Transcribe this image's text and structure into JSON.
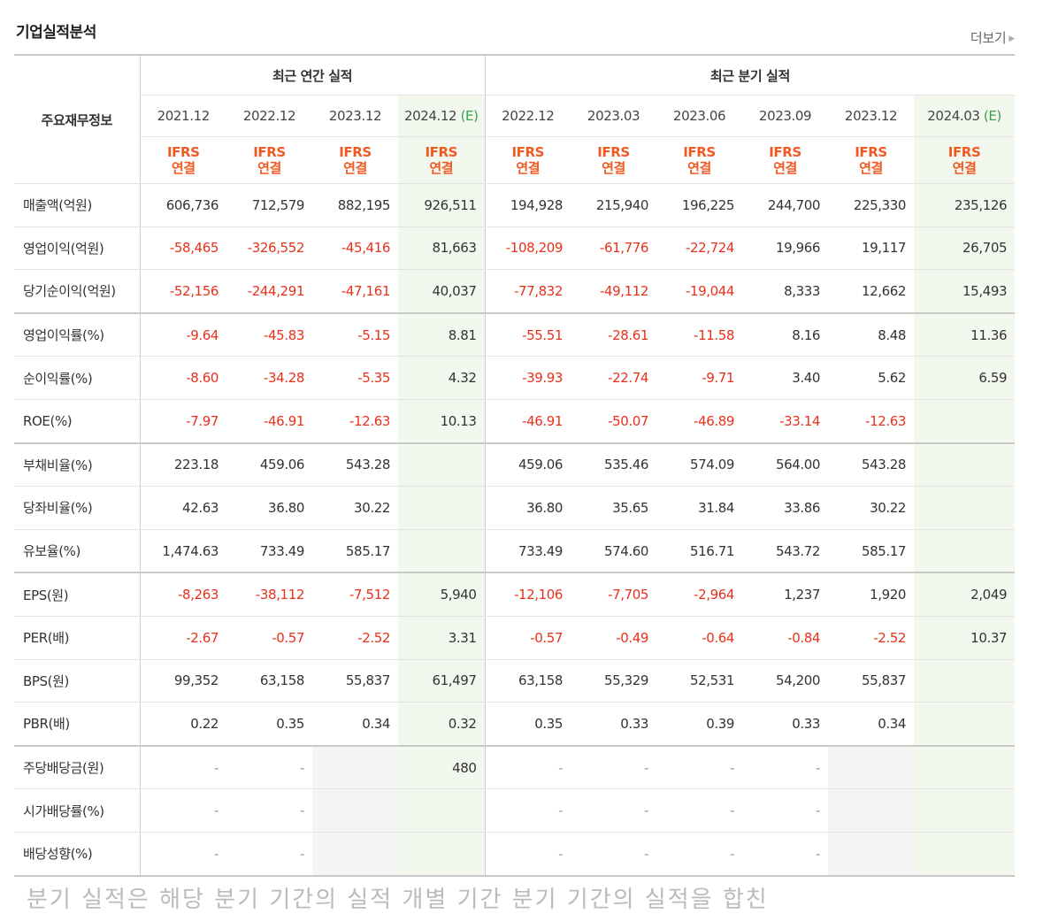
{
  "header": {
    "title": "기업실적분석",
    "more_label": "더보기",
    "more_arrow": "▶"
  },
  "table": {
    "row_header": "주요재무정보",
    "annual_group": "최근 연간 실적",
    "quarterly_group": "최근 분기 실적",
    "est_suffix": "(E)",
    "ifrs_line1": "IFRS",
    "ifrs_line2": "연결",
    "annual_periods": [
      "2021.12",
      "2022.12",
      "2023.12",
      "2024.12"
    ],
    "quarterly_periods": [
      "2022.12",
      "2023.03",
      "2023.06",
      "2023.09",
      "2023.12",
      "2024.03"
    ],
    "rows": [
      {
        "label": "매출액(억원)",
        "values": [
          "606,736",
          "712,579",
          "882,195",
          "926,511",
          "194,928",
          "215,940",
          "196,225",
          "244,700",
          "225,330",
          "235,126"
        ]
      },
      {
        "label": "영업이익(억원)",
        "values": [
          "-58,465",
          "-326,552",
          "-45,416",
          "81,663",
          "-108,209",
          "-61,776",
          "-22,724",
          "19,966",
          "19,117",
          "26,705"
        ]
      },
      {
        "label": "당기순이익(억원)",
        "values": [
          "-52,156",
          "-244,291",
          "-47,161",
          "40,037",
          "-77,832",
          "-49,112",
          "-19,044",
          "8,333",
          "12,662",
          "15,493"
        ]
      },
      {
        "label": "영업이익률(%)",
        "values": [
          "-9.64",
          "-45.83",
          "-5.15",
          "8.81",
          "-55.51",
          "-28.61",
          "-11.58",
          "8.16",
          "8.48",
          "11.36"
        ]
      },
      {
        "label": "순이익률(%)",
        "values": [
          "-8.60",
          "-34.28",
          "-5.35",
          "4.32",
          "-39.93",
          "-22.74",
          "-9.71",
          "3.40",
          "5.62",
          "6.59"
        ]
      },
      {
        "label": "ROE(%)",
        "values": [
          "-7.97",
          "-46.91",
          "-12.63",
          "10.13",
          "-46.91",
          "-50.07",
          "-46.89",
          "-33.14",
          "-12.63",
          ""
        ]
      },
      {
        "label": "부채비율(%)",
        "values": [
          "223.18",
          "459.06",
          "543.28",
          "",
          "459.06",
          "535.46",
          "574.09",
          "564.00",
          "543.28",
          ""
        ]
      },
      {
        "label": "당좌비율(%)",
        "values": [
          "42.63",
          "36.80",
          "30.22",
          "",
          "36.80",
          "35.65",
          "31.84",
          "33.86",
          "30.22",
          ""
        ]
      },
      {
        "label": "유보율(%)",
        "values": [
          "1,474.63",
          "733.49",
          "585.17",
          "",
          "733.49",
          "574.60",
          "516.71",
          "543.72",
          "585.17",
          ""
        ]
      },
      {
        "label": "EPS(원)",
        "values": [
          "-8,263",
          "-38,112",
          "-7,512",
          "5,940",
          "-12,106",
          "-7,705",
          "-2,964",
          "1,237",
          "1,920",
          "2,049"
        ]
      },
      {
        "label": "PER(배)",
        "values": [
          "-2.67",
          "-0.57",
          "-2.52",
          "3.31",
          "-0.57",
          "-0.49",
          "-0.64",
          "-0.84",
          "-2.52",
          "10.37"
        ]
      },
      {
        "label": "BPS(원)",
        "values": [
          "99,352",
          "63,158",
          "55,837",
          "61,497",
          "63,158",
          "55,329",
          "52,531",
          "54,200",
          "55,837",
          ""
        ]
      },
      {
        "label": "PBR(배)",
        "values": [
          "0.22",
          "0.35",
          "0.34",
          "0.32",
          "0.35",
          "0.33",
          "0.39",
          "0.33",
          "0.34",
          ""
        ]
      },
      {
        "label": "주당배당금(원)",
        "values": [
          "-",
          "-",
          "",
          "480",
          "-",
          "-",
          "-",
          "-",
          "",
          ""
        ]
      },
      {
        "label": "시가배당률(%)",
        "values": [
          "-",
          "-",
          "",
          "",
          "-",
          "-",
          "-",
          "-",
          "",
          ""
        ]
      },
      {
        "label": "배당성향(%)",
        "values": [
          "-",
          "-",
          "",
          "",
          "-",
          "-",
          "-",
          "-",
          "",
          ""
        ]
      }
    ],
    "empty_gray_cells": [
      [
        13,
        2
      ],
      [
        14,
        2
      ],
      [
        15,
        2
      ],
      [
        13,
        8
      ],
      [
        14,
        8
      ],
      [
        15,
        8
      ]
    ],
    "group_start_rows": [
      3,
      6,
      9,
      13
    ]
  },
  "footer_text": "분기 실적은 해당 분기 기간의 실적 개별 기간 분기 기간의 실적을 합친"
}
